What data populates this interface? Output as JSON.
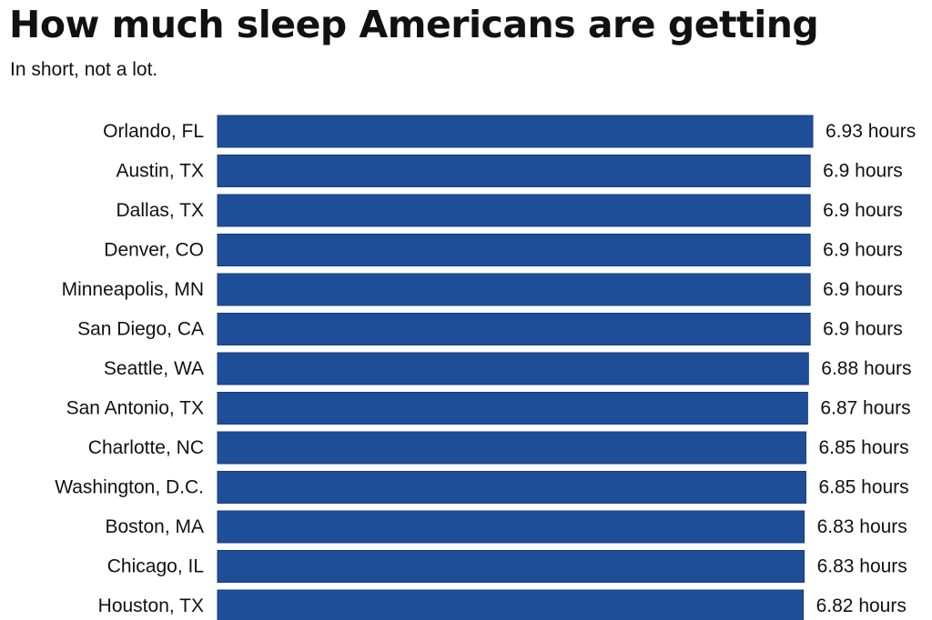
{
  "title": "How much sleep Americans are getting",
  "subtitle": "In short, not a lot.",
  "colors": {
    "bar": "#1f4e98",
    "bar_stroke": "#163d7c",
    "text": "#111111"
  },
  "chart_data": {
    "type": "bar",
    "orientation": "horizontal",
    "title": "How much sleep Americans are getting",
    "subtitle": "In short, not a lot.",
    "value_suffix": " hours",
    "categories": [
      "Orlando, FL",
      "Austin, TX",
      "Dallas, TX",
      "Denver, CO",
      "Minneapolis, MN",
      "San Diego, CA",
      "Seattle, WA",
      "San Antonio, TX",
      "Charlotte, NC",
      "Washington, D.C.",
      "Boston, MA",
      "Chicago, IL",
      "Houston, TX"
    ],
    "values": [
      6.93,
      6.9,
      6.9,
      6.9,
      6.9,
      6.9,
      6.88,
      6.87,
      6.85,
      6.85,
      6.83,
      6.83,
      6.82
    ],
    "value_labels": [
      "6.93 hours",
      "6.9 hours",
      "6.9 hours",
      "6.9 hours",
      "6.9 hours",
      "6.9 hours",
      "6.88 hours",
      "6.87 hours",
      "6.85 hours",
      "6.85 hours",
      "6.83 hours",
      "6.83 hours",
      "6.82 hours"
    ],
    "xlim": [
      0,
      6.93
    ],
    "grid": false,
    "legend": "none"
  }
}
